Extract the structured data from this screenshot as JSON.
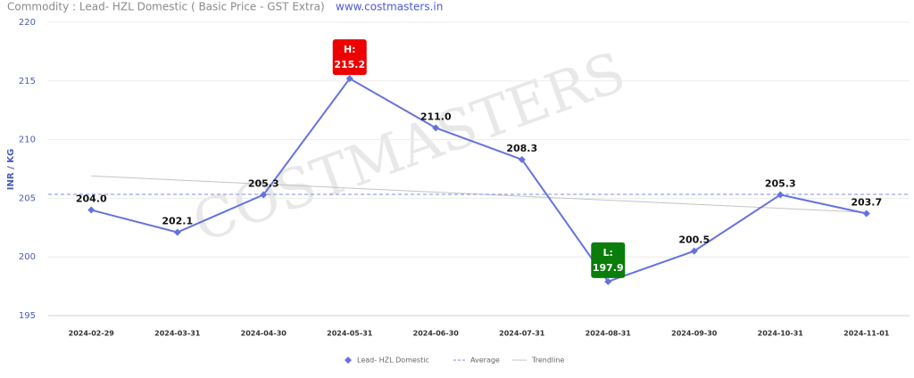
{
  "chart_data": {
    "type": "line",
    "title": "Commodity : Lead- HZL Domestic ( Basic Price - GST Extra)",
    "source": "www.costmasters.in",
    "watermark": "COSTMASTERS",
    "y_label": "INR / KG",
    "x": [
      "2024-02-29",
      "2024-03-31",
      "2024-04-30",
      "2024-05-31",
      "2024-06-30",
      "2024-07-31",
      "2024-08-31",
      "2024-09-30",
      "2024-10-31",
      "2024-11-01"
    ],
    "series": [
      {
        "name": "Lead- HZL Domestic",
        "color": "#6472e0",
        "values": [
          204.0,
          202.1,
          205.3,
          215.2,
          211.0,
          208.3,
          197.9,
          200.5,
          205.3,
          203.7
        ],
        "value_labels": [
          "204.0",
          "202.1",
          "205.3",
          "215.2",
          "211.0",
          "208.3",
          "197.9",
          "200.5",
          "205.3",
          "203.7"
        ]
      }
    ],
    "average": {
      "name": "Average",
      "color": "#7f8ae6",
      "value": 205.33
    },
    "trendline": {
      "name": "Trendline",
      "color": "#c4c4c4",
      "start": 206.9,
      "end": 203.8
    },
    "high_label": "H:",
    "high_color": "#ee0000",
    "low_label": "L:",
    "low_color": "#0a7d0a",
    "ylim": [
      195,
      220
    ],
    "yticks": [
      195,
      200,
      205,
      210,
      215,
      220
    ],
    "grid": true
  }
}
